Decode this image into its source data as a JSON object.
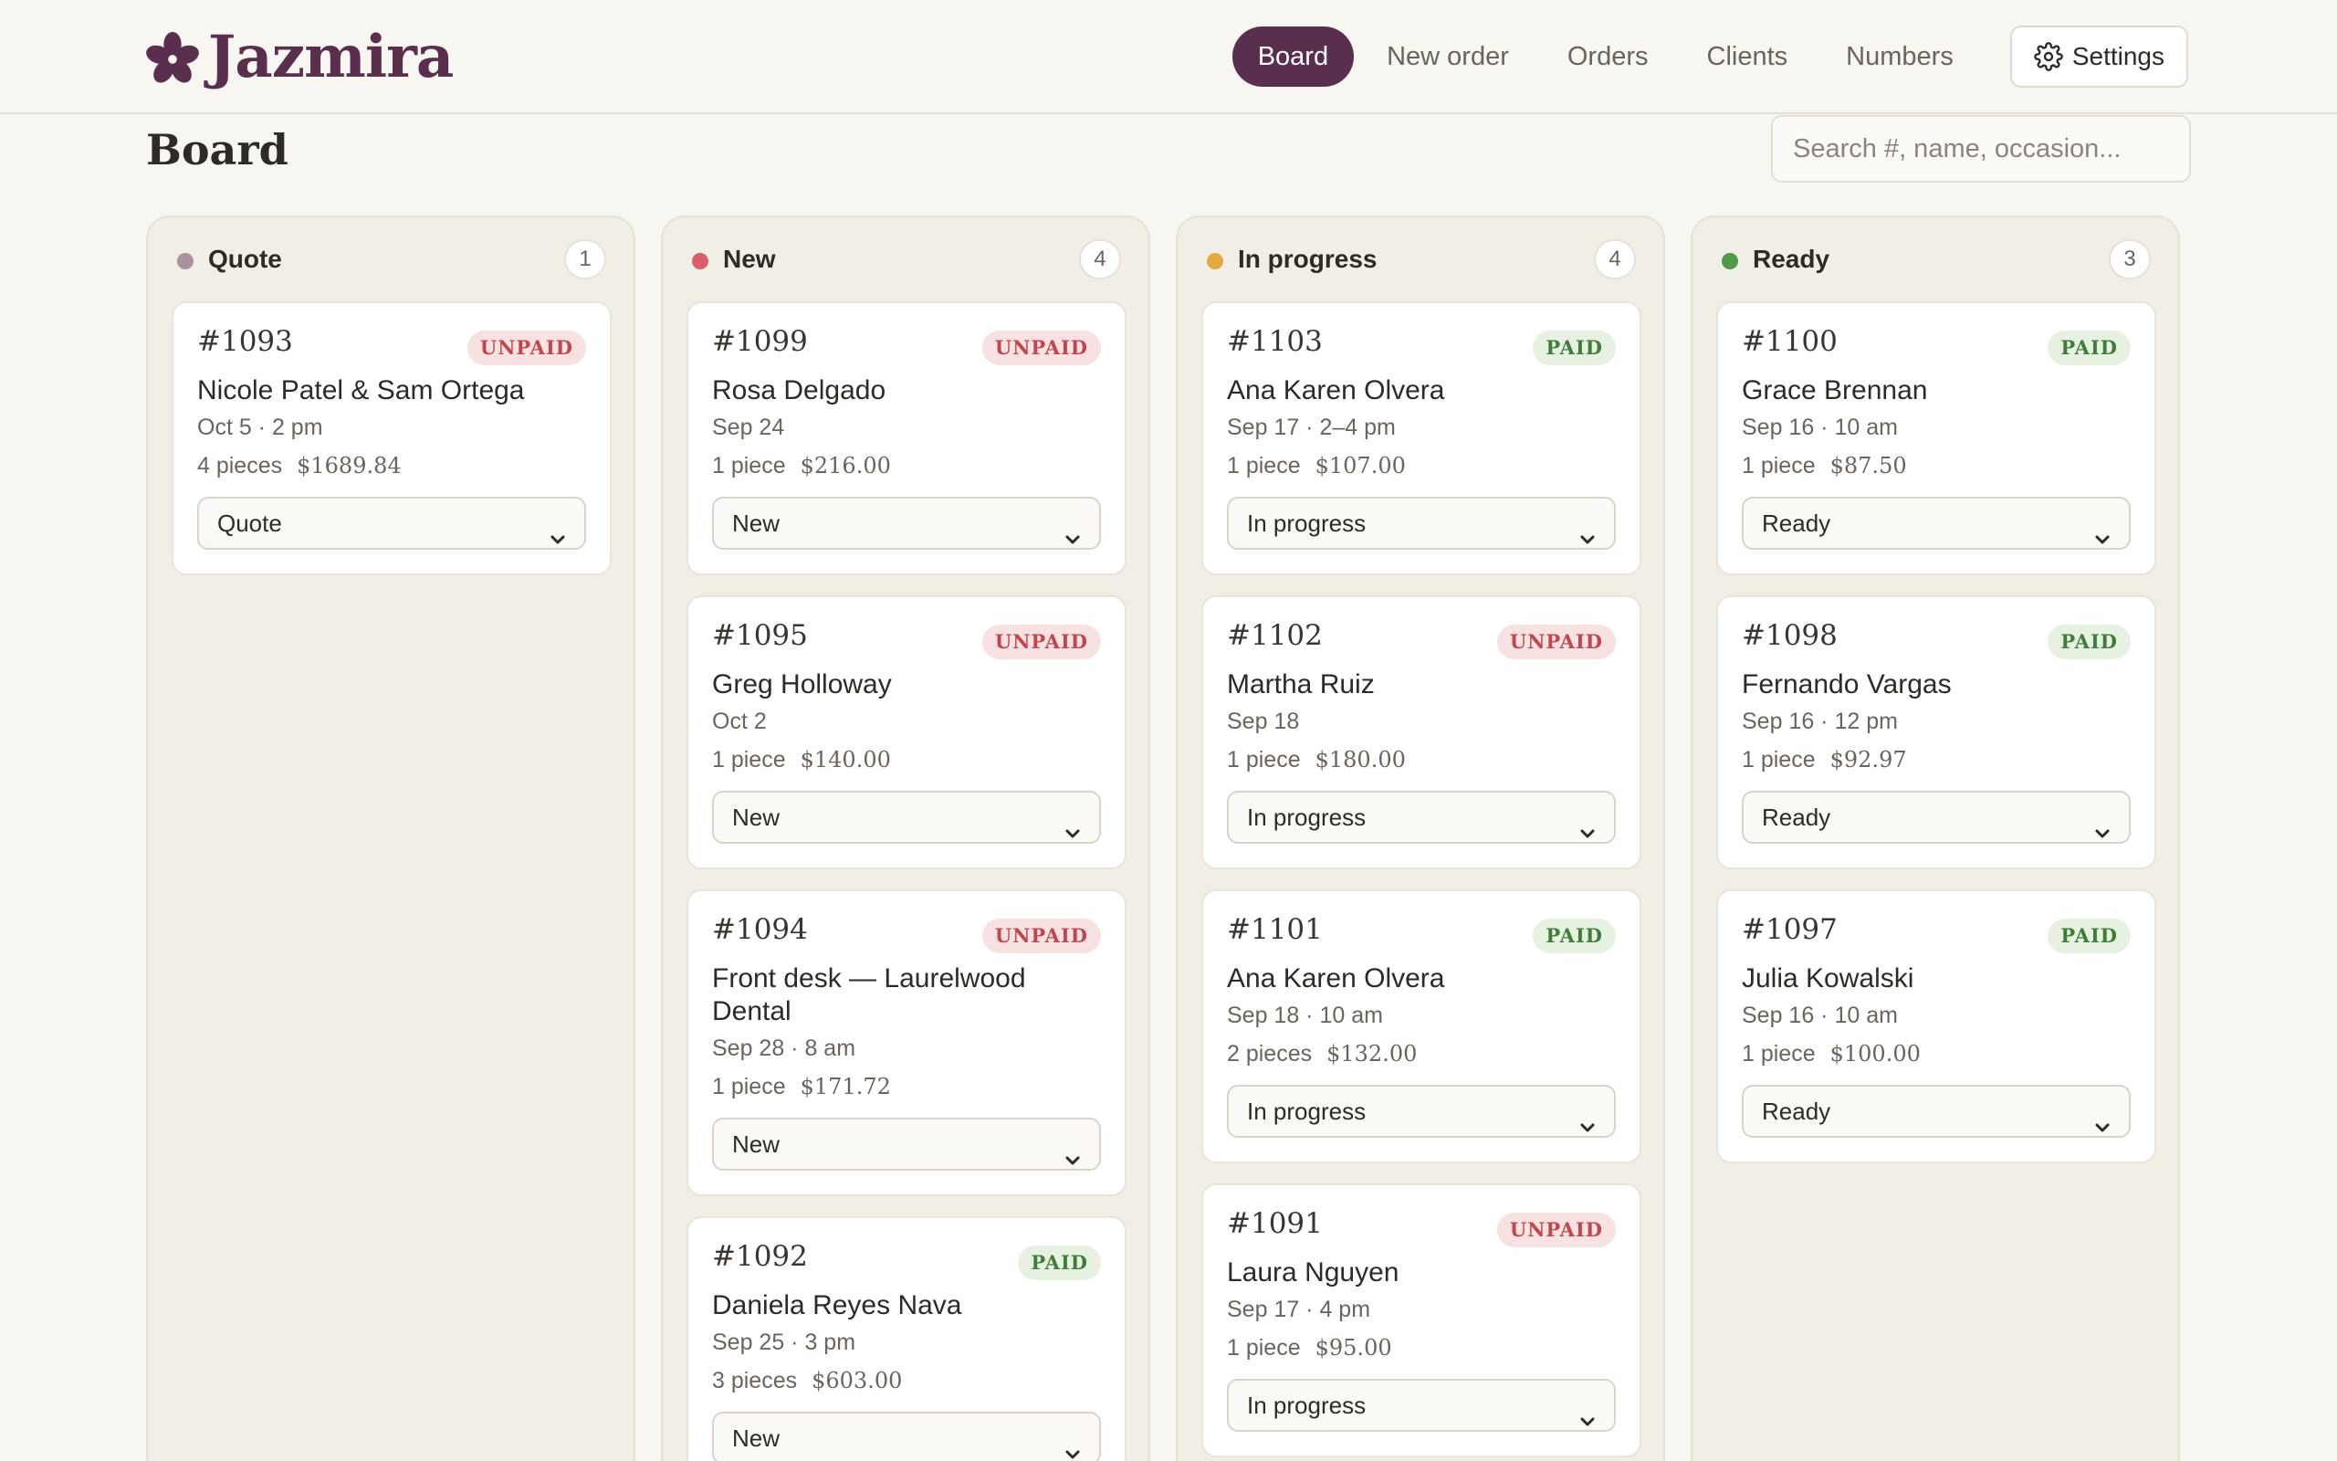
{
  "app": {
    "brand": "Jazmira"
  },
  "nav": {
    "items": [
      "Board",
      "New order",
      "Orders",
      "Clients",
      "Numbers"
    ],
    "active": "Board",
    "settings_label": "Settings"
  },
  "page": {
    "title": "Board",
    "search_placeholder": "Search #, name, occasion..."
  },
  "colors": {
    "brand": "#5a2f4e",
    "quote_dot": "#a8929c",
    "new_dot": "#d9606a",
    "progress_dot": "#e2a93e",
    "ready_dot": "#4d9b47",
    "unpaid": "#c0474f",
    "paid": "#3f7d39"
  },
  "columns": [
    {
      "title": "Quote",
      "count": "1",
      "dot": "#a8929c",
      "cards": [
        {
          "id": "#1093",
          "status": "UNPAID",
          "name": "Nicole Patel & Sam Ortega",
          "date": "Oct 5 · 2 pm",
          "pieces": "4 pieces",
          "price": "$1689.84",
          "stage": "Quote"
        }
      ]
    },
    {
      "title": "New",
      "count": "4",
      "dot": "#d9606a",
      "cards": [
        {
          "id": "#1099",
          "status": "UNPAID",
          "name": "Rosa Delgado",
          "date": "Sep 24",
          "pieces": "1 piece",
          "price": "$216.00",
          "stage": "New"
        },
        {
          "id": "#1095",
          "status": "UNPAID",
          "name": "Greg Holloway",
          "date": "Oct 2",
          "pieces": "1 piece",
          "price": "$140.00",
          "stage": "New"
        },
        {
          "id": "#1094",
          "status": "UNPAID",
          "name": "Front desk — Laurelwood Dental",
          "date": "Sep 28 · 8 am",
          "pieces": "1 piece",
          "price": "$171.72",
          "stage": "New"
        },
        {
          "id": "#1092",
          "status": "PAID",
          "name": "Daniela Reyes Nava",
          "date": "Sep 25 · 3 pm",
          "pieces": "3 pieces",
          "price": "$603.00",
          "stage": "New"
        }
      ]
    },
    {
      "title": "In progress",
      "count": "4",
      "dot": "#e2a93e",
      "cards": [
        {
          "id": "#1103",
          "status": "PAID",
          "name": "Ana Karen Olvera",
          "date": "Sep 17 · 2–4 pm",
          "pieces": "1 piece",
          "price": "$107.00",
          "stage": "In progress"
        },
        {
          "id": "#1102",
          "status": "UNPAID",
          "name": "Martha Ruiz",
          "date": "Sep 18",
          "pieces": "1 piece",
          "price": "$180.00",
          "stage": "In progress"
        },
        {
          "id": "#1101",
          "status": "PAID",
          "name": "Ana Karen Olvera",
          "date": "Sep 18 · 10 am",
          "pieces": "2 pieces",
          "price": "$132.00",
          "stage": "In progress"
        },
        {
          "id": "#1091",
          "status": "UNPAID",
          "name": "Laura Nguyen",
          "date": "Sep 17 · 4 pm",
          "pieces": "1 piece",
          "price": "$95.00",
          "stage": "In progress"
        }
      ]
    },
    {
      "title": "Ready",
      "count": "3",
      "dot": "#4d9b47",
      "cards": [
        {
          "id": "#1100",
          "status": "PAID",
          "name": "Grace Brennan",
          "date": "Sep 16 · 10 am",
          "pieces": "1 piece",
          "price": "$87.50",
          "stage": "Ready"
        },
        {
          "id": "#1098",
          "status": "PAID",
          "name": "Fernando Vargas",
          "date": "Sep 16 · 12 pm",
          "pieces": "1 piece",
          "price": "$92.97",
          "stage": "Ready"
        },
        {
          "id": "#1097",
          "status": "PAID",
          "name": "Julia Kowalski",
          "date": "Sep 16 · 10 am",
          "pieces": "1 piece",
          "price": "$100.00",
          "stage": "Ready"
        }
      ]
    }
  ]
}
